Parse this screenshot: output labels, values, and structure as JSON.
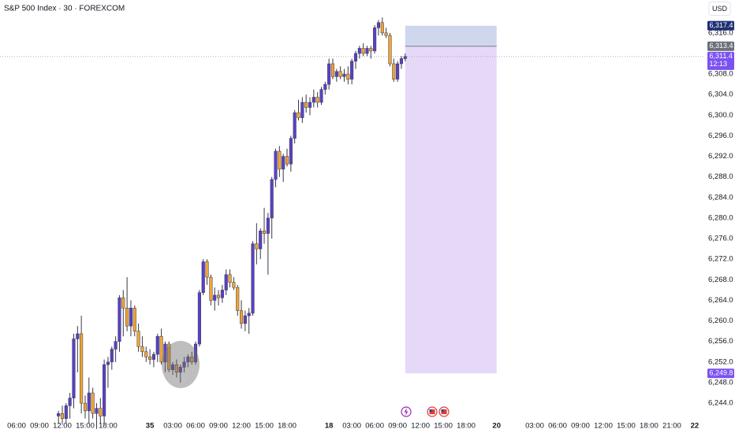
{
  "chart_data": {
    "type": "candlestick",
    "title": "S&P 500 Index · 30 · FOREXCOM",
    "currency": "USD",
    "up_color": "#5b3fc8",
    "down_color": "#f2a436",
    "wick_color": "#363a45",
    "x": [
      11,
      12,
      13,
      14,
      15,
      16,
      17,
      18,
      19,
      20,
      21,
      22,
      23,
      24,
      25,
      26,
      27,
      28,
      29,
      30,
      31,
      32,
      33,
      34,
      35,
      36,
      37,
      38,
      39,
      40,
      41,
      42,
      43,
      44,
      45,
      46,
      47,
      48,
      49,
      50,
      51,
      52,
      53,
      54,
      55,
      56,
      57,
      58,
      59,
      60,
      61,
      62,
      63,
      64,
      65,
      66,
      67,
      68,
      69,
      70,
      71,
      72,
      73,
      74,
      75,
      76,
      77,
      78,
      79,
      80,
      81,
      82,
      83,
      84,
      85,
      86,
      87,
      88,
      89,
      90,
      91,
      92,
      93,
      94,
      95,
      96,
      97,
      98,
      99,
      100,
      101,
      102
    ],
    "open": [
      6241.5,
      6242,
      6241,
      6243.5,
      6245,
      6256.5,
      6257.5,
      6244,
      6242.5,
      6246,
      6242,
      6243,
      6241.5,
      6251.5,
      6252,
      6254.5,
      6256,
      6264.5,
      6262.5,
      6259,
      6262.5,
      6258,
      6255,
      6254,
      6253,
      6252.5,
      6253.5,
      6257,
      6252,
      6255.5,
      6250.5,
      6251.5,
      6250,
      6251,
      6252,
      6253,
      6252,
      6255.5,
      6265.5,
      6271.5,
      6268.5,
      6264,
      6265,
      6264.5,
      6266,
      6269,
      6267.5,
      6266.5,
      6262,
      6259.5,
      6261,
      6261.5,
      6275,
      6274,
      6277.5,
      6277,
      6280,
      6287.5,
      6293,
      6289.5,
      6292,
      6290.5,
      6295.5,
      6300.5,
      6299.5,
      6302.5,
      6301.5,
      6302.5,
      6303.5,
      6302.5,
      6305,
      6306,
      6310,
      6307.5,
      6308.5,
      6307.5,
      6308,
      6307,
      6310.5,
      6312,
      6313,
      6312,
      6313,
      6312.5,
      6317,
      6318,
      6316,
      6315.5,
      6310,
      6307,
      6310,
      6311
    ],
    "high": [
      6242.5,
      6243.5,
      6244,
      6246,
      6257.5,
      6259,
      6261,
      6245.5,
      6249,
      6247,
      6244,
      6245,
      6252.5,
      6253,
      6255,
      6257,
      6265,
      6266,
      6268.5,
      6264,
      6263,
      6259.5,
      6257,
      6255,
      6254.5,
      6254,
      6257.5,
      6258.5,
      6256,
      6256,
      6252,
      6252.5,
      6251.5,
      6253,
      6253.5,
      6254,
      6256,
      6266,
      6272,
      6272,
      6269,
      6266.5,
      6266,
      6267,
      6270,
      6270,
      6268.5,
      6267,
      6264,
      6262,
      6262.5,
      6275.5,
      6279,
      6278,
      6282,
      6281,
      6288,
      6293.5,
      6294,
      6292.5,
      6293.5,
      6296,
      6301,
      6303,
      6303.5,
      6304,
      6303.5,
      6305,
      6304.5,
      6305.5,
      6306.5,
      6311,
      6311,
      6309,
      6309.5,
      6309,
      6309.5,
      6311,
      6312.5,
      6313.5,
      6314,
      6313.5,
      6313.5,
      6317.5,
      6318.5,
      6319,
      6317,
      6316,
      6311,
      6310.5,
      6311.5,
      6312
    ],
    "low": [
      6240,
      6240,
      6240,
      6241,
      6243,
      6250,
      6242,
      6241,
      6240,
      6241,
      6239,
      6240,
      6240,
      6247,
      6250.5,
      6252,
      6254,
      6257,
      6258,
      6257,
      6257,
      6254,
      6253,
      6252,
      6251.5,
      6251,
      6252,
      6251.5,
      6250,
      6250,
      6249.5,
      6249,
      6248,
      6250,
      6251,
      6251.5,
      6251.5,
      6255,
      6265,
      6267,
      6263,
      6262,
      6263,
      6263.5,
      6265,
      6266.5,
      6266,
      6261,
      6258.5,
      6258,
      6257.5,
      6261,
      6271,
      6272,
      6275,
      6269,
      6276,
      6286,
      6288,
      6287,
      6290,
      6289,
      6294.5,
      6299,
      6298.5,
      6300.5,
      6300,
      6301.5,
      6301.5,
      6302,
      6304,
      6305,
      6307,
      6306.5,
      6307,
      6306.5,
      6306,
      6306,
      6309,
      6311,
      6311.5,
      6311.5,
      6311,
      6312,
      6315.5,
      6315.5,
      6315,
      6309.5,
      6306.5,
      6306.5,
      6309,
      6310.5
    ],
    "close": [
      6242,
      6241,
      6243.5,
      6245,
      6256.5,
      6257.5,
      6244,
      6242.5,
      6246,
      6242,
      6243,
      6241.5,
      6251.5,
      6252,
      6254.5,
      6256,
      6264.5,
      6262.5,
      6259,
      6262.5,
      6258,
      6255,
      6254,
      6253,
      6252.5,
      6253.5,
      6257,
      6252,
      6255.5,
      6250.5,
      6251.5,
      6250,
      6251,
      6252,
      6253,
      6252,
      6255.5,
      6265.5,
      6271.5,
      6268.5,
      6264,
      6265,
      6264.5,
      6266,
      6269,
      6267.5,
      6266.5,
      6262,
      6259.5,
      6261,
      6261.5,
      6275,
      6274,
      6277.5,
      6277,
      6280,
      6287.5,
      6293,
      6289.5,
      6292,
      6290.5,
      6295.5,
      6300.5,
      6299.5,
      6302.5,
      6301.5,
      6302.5,
      6303.5,
      6302.5,
      6305,
      6306,
      6310,
      6307.5,
      6308.5,
      6307.5,
      6308,
      6307,
      6310.5,
      6312,
      6313,
      6312,
      6313,
      6312.5,
      6317,
      6318,
      6316,
      6315.5,
      6310,
      6307,
      6310,
      6311,
      6311.4
    ],
    "xlim": [
      -4.35,
      180.5
    ],
    "xticks": [
      {
        "value": 0,
        "label": "06:00"
      },
      {
        "value": 6,
        "label": "09:00"
      },
      {
        "value": 12,
        "label": "12:00"
      },
      {
        "value": 18,
        "label": "15:00"
      },
      {
        "value": 24,
        "label": "18:00"
      },
      35,
      {
        "value": 41,
        "label": "03:00"
      },
      {
        "value": 47,
        "label": "06:00"
      },
      {
        "value": 53,
        "label": "09:00"
      },
      {
        "value": 59,
        "label": "12:00"
      },
      {
        "value": 65,
        "label": "15:00"
      },
      {
        "value": 71,
        "label": "18:00"
      },
      {
        "value": 82,
        "label": "18"
      },
      {
        "value": 88,
        "label": "03:00"
      },
      {
        "value": 94,
        "label": "06:00"
      },
      {
        "value": 100,
        "label": "09:00"
      },
      {
        "value": 106,
        "label": "12:00"
      },
      {
        "value": 112,
        "label": "15:00"
      },
      {
        "value": 118,
        "label": "18:00"
      },
      {
        "value": 126,
        "label": "20"
      },
      {
        "value": 136,
        "label": "03:00"
      },
      {
        "value": 142,
        "label": "06:00"
      },
      {
        "value": 148,
        "label": "09:00"
      },
      {
        "value": 154,
        "label": "12:00"
      },
      {
        "value": 160,
        "label": "15:00"
      },
      {
        "value": 166,
        "label": "18:00"
      },
      {
        "value": 172,
        "label": "21:00"
      },
      {
        "value": 178,
        "label": "22"
      }
    ],
    "ylim": [
      6238.2,
      6322.4
    ],
    "yticks": [
      {
        "value": 6244,
        "label": "6,244.0"
      },
      {
        "value": 6248,
        "label": "6,248.0"
      },
      {
        "value": 6252,
        "label": "6,252.0"
      },
      {
        "value": 6256,
        "label": "6,256.0"
      },
      {
        "value": 6260,
        "label": "6,260.0"
      },
      {
        "value": 6264,
        "label": "6,264.0"
      },
      {
        "value": 6268,
        "label": "6,268.0"
      },
      {
        "value": 6272,
        "label": "6,272.0"
      },
      {
        "value": 6276,
        "label": "6,276.0"
      },
      {
        "value": 6280,
        "label": "6,280.0"
      },
      {
        "value": 6284,
        "label": "6,284.0"
      },
      {
        "value": 6288,
        "label": "6,288.0"
      },
      {
        "value": 6292,
        "label": "6,292.0"
      },
      {
        "value": 6296,
        "label": "6,296.0"
      },
      {
        "value": 6300,
        "label": "6,300.0"
      },
      {
        "value": 6304,
        "label": "6,304.0"
      },
      {
        "value": 6308,
        "label": "6,308.0"
      },
      {
        "value": 6316,
        "label": "6,316.0"
      }
    ],
    "grid": false,
    "last_price": {
      "value": 6311.4,
      "label": "6,311.4"
    },
    "last_price_color": "#7b52f0",
    "countdown": "12:13",
    "position": {
      "x": [
        102,
        126
      ],
      "stop": {
        "value": 6317.4,
        "label": "6,317.4"
      },
      "entry": {
        "value": 6313.4,
        "label": "6,313.4"
      },
      "target": {
        "value": 6249.8,
        "label": "6,249.8"
      },
      "stop_color": "#cfd7ee",
      "target_color": "#e6d9f8",
      "stop_label_color": "#1f2f75",
      "entry_label_color": "#6b6f7a",
      "target_label_color": "#7b52f0"
    }
  }
}
